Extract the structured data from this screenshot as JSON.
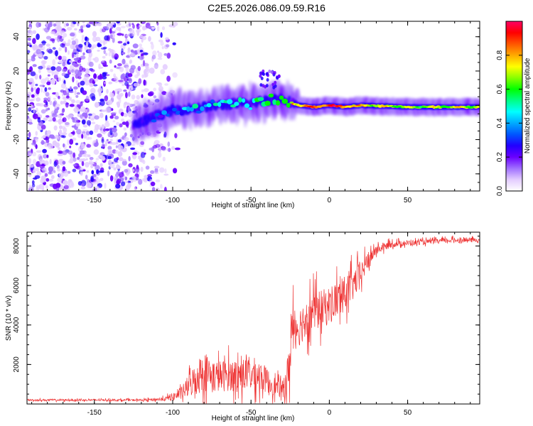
{
  "title": "C2E5.2026.086.09.59.R16",
  "chart_data": [
    {
      "type": "heatmap",
      "name": "spectrogram",
      "xlabel": "Height of straight line (km)",
      "ylabel": "Frequency (Hz)",
      "xlim": [
        -193,
        96
      ],
      "ylim": [
        -50,
        49
      ],
      "xticks": [
        -150,
        -100,
        -50,
        0,
        50
      ],
      "yticks": [
        -40,
        -20,
        0,
        20,
        40
      ],
      "colorbar": {
        "label": "Normalized spectral amplitude",
        "range": [
          0,
          1
        ],
        "ticks": [
          0.0,
          0.2,
          0.4,
          0.6,
          0.8
        ],
        "colors": [
          "#ffffff",
          "#e3ccff",
          "#a070ff",
          "#6a00ff",
          "#2200ff",
          "#0055ff",
          "#00aaff",
          "#00ffff",
          "#00ff88",
          "#00ff00",
          "#88ff00",
          "#ffff00",
          "#ffaa00",
          "#ff5500",
          "#ff0000",
          "#ff0066"
        ]
      },
      "ridge": {
        "x": [
          -125,
          -110,
          -100,
          -90,
          -80,
          -70,
          -60,
          -50,
          -40,
          -30,
          -20,
          -10,
          0,
          10,
          20,
          50,
          96
        ],
        "freq": [
          -12,
          -6,
          -3,
          -2,
          -1,
          0,
          1,
          1,
          3,
          4,
          0,
          -1,
          0,
          -1,
          0,
          -1,
          -1
        ],
        "amplitude": [
          0.2,
          0.3,
          0.35,
          0.4,
          0.45,
          0.45,
          0.5,
          0.55,
          0.6,
          0.65,
          0.8,
          0.85,
          0.9,
          0.85,
          0.75,
          0.65,
          0.7
        ]
      },
      "noise_region": [
        -193,
        -108
      ]
    },
    {
      "type": "line",
      "name": "snr",
      "xlabel": "Height of straight line (km)",
      "ylabel": "SNR (10 * v/v)",
      "xlim": [
        -193,
        96
      ],
      "ylim": [
        0,
        8700
      ],
      "xticks": [
        -150,
        -100,
        -50,
        0,
        50
      ],
      "yticks": [
        2000,
        4000,
        6000,
        8000
      ],
      "color": "#ee3333",
      "series": [
        {
          "name": "SNR",
          "x": [
            -193,
            -120,
            -105,
            -95,
            -90,
            -85,
            -80,
            -75,
            -70,
            -60,
            -50,
            -45,
            -40,
            -35,
            -30,
            -26,
            -24,
            -22,
            -20,
            -15,
            -10,
            -5,
            0,
            5,
            10,
            15,
            20,
            25,
            30,
            40,
            60,
            80,
            96
          ],
          "y": [
            200,
            200,
            250,
            500,
            900,
            1300,
            1700,
            1400,
            1400,
            1500,
            1500,
            1500,
            1200,
            900,
            700,
            1500,
            3800,
            4200,
            3800,
            4400,
            4700,
            4800,
            5000,
            5300,
            5600,
            6000,
            6600,
            7300,
            7800,
            8100,
            8200,
            8300,
            8300
          ],
          "spread": [
            60,
            60,
            120,
            350,
            700,
            1100,
            1300,
            1100,
            1000,
            1000,
            1100,
            1000,
            800,
            600,
            500,
            1500,
            1800,
            1400,
            1200,
            1300,
            1300,
            1200,
            1200,
            1200,
            1100,
            1000,
            800,
            500,
            300,
            200,
            150,
            150,
            150
          ]
        }
      ]
    }
  ]
}
